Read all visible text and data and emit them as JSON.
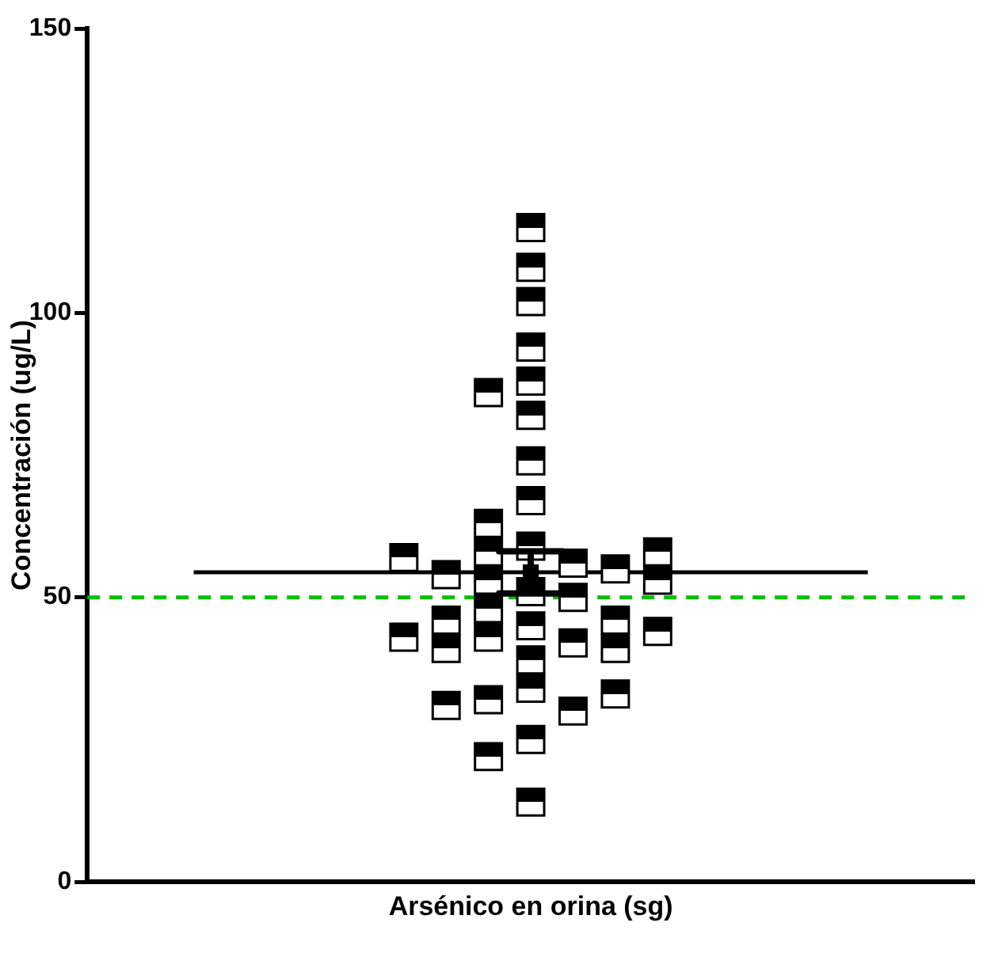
{
  "chart_data": {
    "type": "scatter",
    "ylabel": "Concentración (ug/L)",
    "categories": [
      "Arsénico en orina (sg)"
    ],
    "ylim": [
      0,
      150
    ],
    "yticks": [
      0,
      50,
      100,
      150
    ],
    "grid": false,
    "legend": false,
    "series": [
      {
        "type": "scatter",
        "color": "#000000",
        "marker": "square",
        "x": [
          "Arsénico en orina (sg)",
          "Arsénico en orina (sg)",
          "Arsénico en orina (sg)",
          "Arsénico en orina (sg)",
          "Arsénico en orina (sg)",
          "Arsénico en orina (sg)",
          "Arsénico en orina (sg)",
          "Arsénico en orina (sg)",
          "Arsénico en orina (sg)",
          "Arsénico en orina (sg)",
          "Arsénico en orina (sg)",
          "Arsénico en orina (sg)",
          "Arsénico en orina (sg)",
          "Arsénico en orina (sg)",
          "Arsénico en orina (sg)",
          "Arsénico en orina (sg)",
          "Arsénico en orina (sg)",
          "Arsénico en orina (sg)",
          "Arsénico en orina (sg)",
          "Arsénico en orina (sg)",
          "Arsénico en orina (sg)",
          "Arsénico en orina (sg)",
          "Arsénico en orina (sg)",
          "Arsénico en orina (sg)",
          "Arsénico en orina (sg)",
          "Arsénico en orina (sg)",
          "Arsénico en orina (sg)",
          "Arsénico en orina (sg)",
          "Arsénico en orina (sg)",
          "Arsénico en orina (sg)",
          "Arsénico en orina (sg)",
          "Arsénico en orina (sg)",
          "Arsénico en orina (sg)",
          "Arsénico en orina (sg)",
          "Arsénico en orina (sg)",
          "Arsénico en orina (sg)",
          "Arsénico en orina (sg)",
          "Arsénico en orina (sg)",
          "Arsénico en orina (sg)",
          "Arsénico en orina (sg)"
        ],
        "values": [
          115,
          108,
          102,
          94,
          88,
          86,
          82,
          74,
          67,
          63,
          59,
          45,
          58,
          43,
          56,
          51,
          42,
          34,
          54,
          48,
          41,
          32,
          25,
          53,
          46,
          39,
          30,
          22,
          14,
          55,
          46,
          41,
          31,
          57,
          50,
          43,
          33,
          58,
          53,
          44
        ]
      },
      {
        "type": "scatter",
        "color": "#000000",
        "x": [
          "Arsénico en orina (sg)"
        ],
        "values": [
          54.4
        ],
        "errors": [
          3.7
        ]
      }
    ],
    "ref_lines": [
      {
        "axis": "y",
        "value": 50,
        "color": "#00c000",
        "line_style": "dashed"
      },
      {
        "axis": "y",
        "value": 54.4,
        "color": "#000000",
        "line_style": "solid"
      }
    ]
  }
}
